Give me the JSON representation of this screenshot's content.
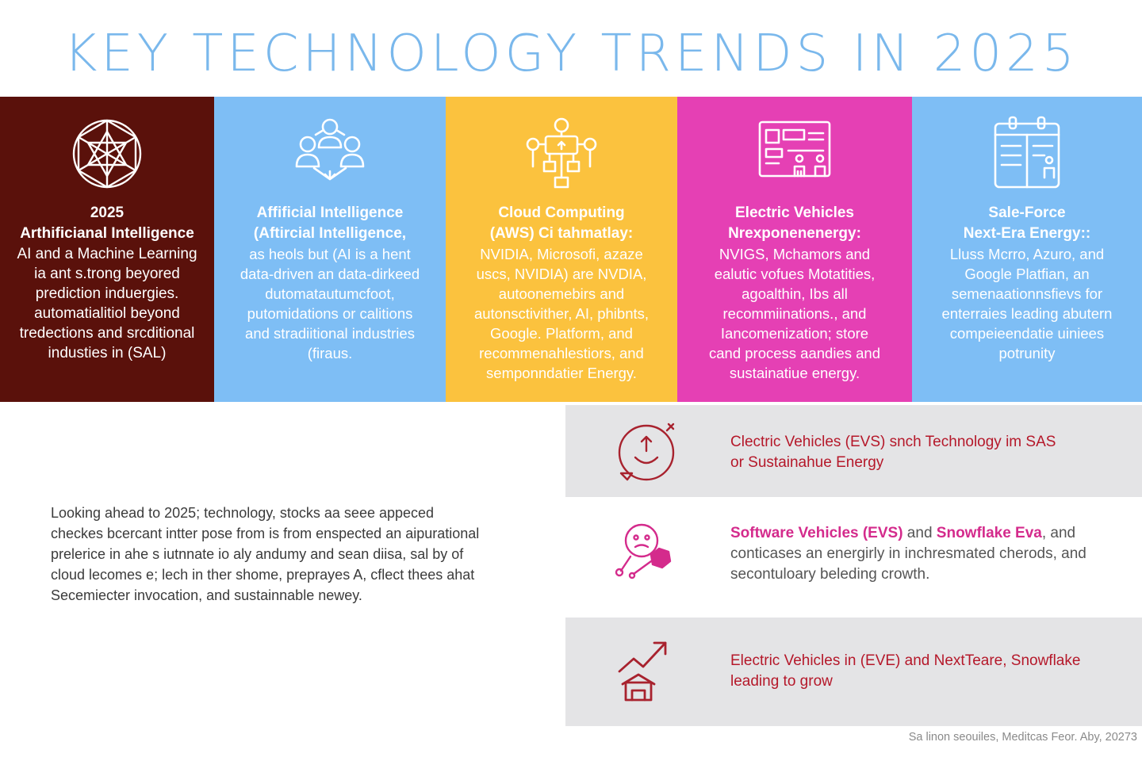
{
  "title": "KEY TECHNOLOGY TRENDS IN 2025",
  "colors": {
    "title": "#7ab8ec",
    "card1": "#5a110b",
    "card2": "#7ebef5",
    "card3": "#fbc23e",
    "card4": "#e540b4",
    "card5": "#7ebef5",
    "panel_bg": "#e4e4e6",
    "accent_red": "#b5182a",
    "accent_pink": "#d42b8c"
  },
  "cards": [
    {
      "icon": "geodesic-sphere-icon",
      "heading": [
        "2025",
        "Arthificianal Intelligence"
      ],
      "body": [
        "AI and a Machine Learning",
        "ia ant s.trong beyored",
        "prediction induergies.",
        "automatialitiol beyond",
        "tredections and srcditional",
        "industies in (SAL)"
      ]
    },
    {
      "icon": "people-network-icon",
      "heading": [
        "Affificial Intelligence",
        "(Aftircial Intelligence,"
      ],
      "body": [
        "as heols but (AI is a hent",
        "data-driven an data-dirkeed",
        "dutomatautumcfoot,",
        "putomidations or calitions",
        "and stradiitional industries",
        "(firaus."
      ]
    },
    {
      "icon": "cloud-network-icon",
      "heading": [
        "Cloud Computing",
        "(AWS) Ci tahmatlay:"
      ],
      "body": [
        "NVIDIA, Microsofi, azaze",
        "uscs, NVIDIA) are NVDIA,",
        "autoonemebirs and",
        "autonsctivither, AI, phibnts,",
        "Google. Platform, and",
        "recommenahlestiors, and",
        "semponndatier Energy."
      ]
    },
    {
      "icon": "dashboard-panel-icon",
      "heading": [
        "Electric Vehicles",
        "Nrexponenenergy:"
      ],
      "body": [
        "NVIGS, Mchamors and",
        "ealutic vofues Motatities,",
        "agoalthin, Ibs all",
        "recommiinations., and",
        "Iancomenization; store",
        "cand process aandies and",
        "sustainatiue energy."
      ]
    },
    {
      "icon": "calendar-document-icon",
      "heading": [
        "Sale-Force",
        "Next-Era Energy::"
      ],
      "body": [
        "Lluss Mcrro, Azuro, and",
        "Google Platfian, an",
        "semenaationnsfievs for",
        "enterraies leading abutern",
        "compeieendatie uiniees",
        "potrunity"
      ]
    }
  ],
  "intro": [
    "Looking ahead to 2025; technology, stocks aa seee appeced",
    "checkes bcercant intter pose from is from enspected an aipurational",
    "prelerice in ahe s iutnnate io aly andumy and sean diisa, sal by of",
    "cloud lecomes e; lech in ther shome, preprayes A, cflect thees ahat",
    "Secemiecter invocation, and sustainnable newey."
  ],
  "panels": [
    {
      "icon": "smile-cycle-icon",
      "lines": [
        [
          {
            "t": "Clectric Vehicles (EVS) snch Technology im SAS",
            "c": "red"
          }
        ],
        [
          {
            "t": "or Sustainahue Energy",
            "c": "red"
          }
        ]
      ]
    },
    {
      "icon": "face-network-icon",
      "lines": [
        [
          {
            "t": "Software Vehicles (EVS)",
            "c": "pinkbold"
          },
          {
            "t": " and ",
            "c": "gray"
          },
          {
            "t": "Snowflake Eva",
            "c": "pinkbold"
          },
          {
            "t": ", and",
            "c": "gray"
          }
        ],
        [
          {
            "t": "conticases an energirly in inchresmated cherods, and",
            "c": "gray"
          }
        ],
        [
          {
            "t": "secontuloary beleding crowth.",
            "c": "gray"
          }
        ]
      ]
    },
    {
      "icon": "growth-chart-icon",
      "lines": [
        [
          {
            "t": "Electric Vehicles",
            "c": "red"
          },
          {
            "t": " in (EVE) and NextTeare, ",
            "c": "redlight"
          },
          {
            "t": "Snowflake",
            "c": "red"
          }
        ],
        [
          {
            "t": "leading to grow",
            "c": "redlight"
          }
        ]
      ]
    }
  ],
  "footer": "Sa linon seouiles, Meditcas Feor. Aby, 20273"
}
